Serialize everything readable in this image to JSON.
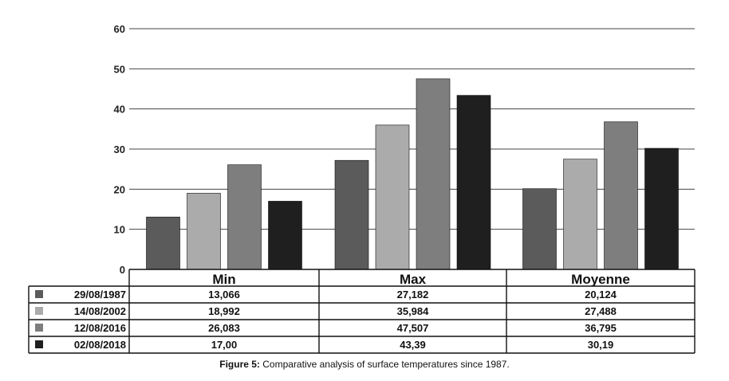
{
  "chart_data": {
    "type": "bar",
    "categories": [
      "Min",
      "Max",
      "Moyenne"
    ],
    "series": [
      {
        "name": "29/08/1987",
        "color": "#5b5b5b",
        "values": [
          13.066,
          27.182,
          20.124
        ],
        "labels": [
          "13,066",
          "27,182",
          "20,124"
        ]
      },
      {
        "name": "14/08/2002",
        "color": "#ababab",
        "values": [
          18.992,
          35.984,
          27.488
        ],
        "labels": [
          "18,992",
          "35,984",
          "27,488"
        ]
      },
      {
        "name": "12/08/2016",
        "color": "#7e7e7e",
        "values": [
          26.083,
          47.507,
          36.795
        ],
        "labels": [
          "26,083",
          "47,507",
          "36,795"
        ]
      },
      {
        "name": "02/08/2018",
        "color": "#1f1f1f",
        "values": [
          17.0,
          43.39,
          30.19
        ],
        "labels": [
          "17,00",
          "43,39",
          "30,19"
        ]
      }
    ],
    "ylim": [
      0,
      60
    ],
    "yticks": [
      0,
      10,
      20,
      30,
      40,
      50,
      60
    ],
    "grid": true,
    "legend": "table-left"
  },
  "caption": {
    "label": "Figure 5:",
    "text": " Comparative analysis of surface temperatures since 1987."
  }
}
